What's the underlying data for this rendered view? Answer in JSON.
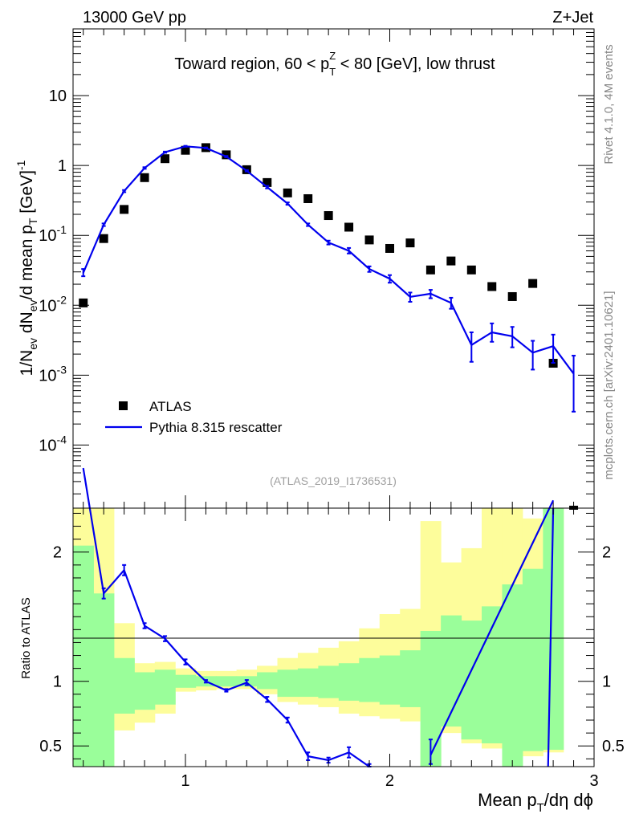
{
  "header": {
    "left": "13000 GeV pp",
    "right": "Z+Jet",
    "side_top": "Rivet 4.1.0,  4M events",
    "side_bottom": "mcplots.cern.ch [arXiv:2401.10621]",
    "analysis_id": "(ATLAS_2019_I1736531)"
  },
  "colors": {
    "mc_line": "#0000ee",
    "data_marker": "#000000",
    "band_inner": "#9afe9a",
    "band_outer": "#fdfd9b"
  },
  "chart_data": [
    {
      "type": "scatter",
      "title": "Toward region, 60 < p_T^Z < 80 [GeV], low thrust",
      "title_parts": {
        "pre": "Toward region, 60 < p",
        "sub": "T",
        "sup": "Z",
        "post": " < 80 [GeV], low thrust"
      },
      "ylabel": "1/N_ev dN_ev/d mean p_T [GeV]^-1",
      "yscale": "log",
      "ylim": [
        1.25e-05,
        90
      ],
      "xlim": [
        0.45,
        3.0
      ],
      "ytick_labels": [
        "10",
        "1",
        "10^-1",
        "10^-2",
        "10^-3",
        "10^-4"
      ],
      "legend": {
        "placement": "lower-left",
        "entries": [
          "ATLAS",
          "Pythia 8.315 rescatter"
        ]
      },
      "series": [
        {
          "name": "ATLAS",
          "style": "marker",
          "x": [
            0.5,
            0.6,
            0.7,
            0.8,
            0.9,
            1.0,
            1.1,
            1.2,
            1.3,
            1.4,
            1.5,
            1.6,
            1.7,
            1.8,
            1.9,
            2.0,
            2.1,
            2.2,
            2.3,
            2.4,
            2.5,
            2.6,
            2.7,
            2.8,
            2.9
          ],
          "values": [
            0.0108,
            0.09,
            0.235,
            0.67,
            1.25,
            1.65,
            1.8,
            1.42,
            0.87,
            0.57,
            0.405,
            0.335,
            0.192,
            0.131,
            0.086,
            0.065,
            0.078,
            0.032,
            0.043,
            0.032,
            0.0185,
            0.0133,
            0.0205,
            0.00148,
            null
          ]
        },
        {
          "name": "Pythia 8.315 rescatter",
          "style": "line",
          "x": [
            0.5,
            0.6,
            0.7,
            0.8,
            0.9,
            1.0,
            1.1,
            1.2,
            1.3,
            1.4,
            1.5,
            1.6,
            1.7,
            1.8,
            1.9,
            2.0,
            2.1,
            2.2,
            2.3,
            2.4,
            2.5,
            2.6,
            2.7,
            2.8,
            2.9
          ],
          "values": [
            0.029,
            0.142,
            0.43,
            0.92,
            1.55,
            1.88,
            1.78,
            1.34,
            0.84,
            0.49,
            0.285,
            0.142,
            0.079,
            0.06,
            0.033,
            0.024,
            0.0132,
            0.0146,
            0.0108,
            0.0027,
            0.0041,
            0.0036,
            0.0021,
            0.0026,
            0.00105
          ],
          "err_low": [
            0.026,
            0.136,
            0.415,
            0.895,
            1.52,
            1.85,
            1.75,
            1.31,
            0.82,
            0.47,
            0.274,
            0.136,
            0.074,
            0.055,
            0.03,
            0.021,
            0.0112,
            0.0126,
            0.0089,
            0.00155,
            0.003,
            0.0025,
            0.0012,
            0.0015,
            0.0003
          ],
          "err_high": [
            0.033,
            0.148,
            0.445,
            0.945,
            1.58,
            1.91,
            1.81,
            1.37,
            0.86,
            0.51,
            0.296,
            0.148,
            0.084,
            0.066,
            0.036,
            0.027,
            0.0152,
            0.0166,
            0.0128,
            0.0041,
            0.0055,
            0.0049,
            0.0031,
            0.0038,
            0.0019
          ]
        }
      ]
    },
    {
      "type": "line",
      "ylabel": "Ratio to ATLAS",
      "xlabel": "Mean p_T/dη dϕ",
      "xlabel_parts": {
        "pre": "Mean p",
        "sub": "T",
        "post": "/dη dϕ"
      },
      "xlim": [
        0.45,
        3.0
      ],
      "ylim": [
        0.34,
        2.34
      ],
      "xtick_labels": [
        "1",
        "2",
        "3"
      ],
      "ytick_labels": [
        "0.5",
        "1",
        "2"
      ],
      "reference_line": 1,
      "bands": {
        "bin_edges": [
          0.45,
          0.55,
          0.65,
          0.75,
          0.85,
          0.95,
          1.05,
          1.15,
          1.25,
          1.35,
          1.45,
          1.55,
          1.65,
          1.75,
          1.85,
          1.95,
          2.05,
          2.15,
          2.25,
          2.35,
          2.45,
          2.55,
          2.65,
          2.75,
          2.85
        ],
        "outer_low": [
          0.34,
          0.34,
          0.62,
          0.68,
          0.75,
          0.92,
          0.93,
          0.94,
          0.94,
          0.9,
          0.84,
          0.82,
          0.8,
          0.75,
          0.73,
          0.71,
          0.69,
          0.34,
          0.6,
          0.52,
          0.48,
          0.34,
          0.42,
          0.45
        ],
        "inner_low": [
          0.34,
          0.34,
          0.75,
          0.78,
          0.82,
          0.95,
          0.96,
          0.96,
          0.96,
          0.94,
          0.88,
          0.88,
          0.87,
          0.85,
          0.84,
          0.82,
          0.8,
          0.34,
          0.65,
          0.55,
          0.52,
          0.34,
          0.46,
          0.47
        ],
        "inner_high": [
          2.05,
          1.68,
          1.18,
          1.07,
          1.09,
          1.05,
          1.04,
          1.04,
          1.04,
          1.07,
          1.09,
          1.1,
          1.12,
          1.14,
          1.18,
          1.2,
          1.24,
          1.39,
          1.51,
          1.47,
          1.58,
          1.75,
          1.87,
          2.34
        ],
        "outer_high": [
          2.34,
          2.34,
          1.45,
          1.14,
          1.15,
          1.1,
          1.08,
          1.08,
          1.09,
          1.12,
          1.18,
          1.22,
          1.26,
          1.31,
          1.41,
          1.52,
          1.56,
          2.24,
          1.92,
          2.03,
          2.34,
          2.34,
          2.26,
          2.34
        ]
      },
      "series": [
        {
          "name": "Pythia 8.315 rescatter / ATLAS",
          "x": [
            0.5,
            0.6,
            0.7,
            0.8,
            0.9,
            1.0,
            1.1,
            1.2,
            1.3,
            1.4,
            1.5,
            1.6,
            1.7,
            1.8,
            1.9,
            2.2,
            2.8
          ],
          "values": [
            2.65,
            1.68,
            1.86,
            1.43,
            1.33,
            1.15,
            1.0,
            0.93,
            0.99,
            0.86,
            0.7,
            0.42,
            0.39,
            0.45,
            0.34,
            0.43,
            2.4
          ],
          "err_low": [
            2.6,
            1.64,
            1.82,
            1.41,
            1.31,
            1.13,
            0.99,
            0.92,
            0.97,
            0.84,
            0.68,
            0.39,
            0.37,
            0.41,
            0.34,
            0.36,
            2.3
          ],
          "err_high": [
            2.7,
            1.72,
            1.9,
            1.45,
            1.35,
            1.17,
            1.01,
            0.94,
            1.01,
            0.88,
            0.72,
            0.45,
            0.41,
            0.49,
            0.36,
            0.55,
            2.5
          ],
          "gap_after_index": 14
        }
      ]
    }
  ]
}
